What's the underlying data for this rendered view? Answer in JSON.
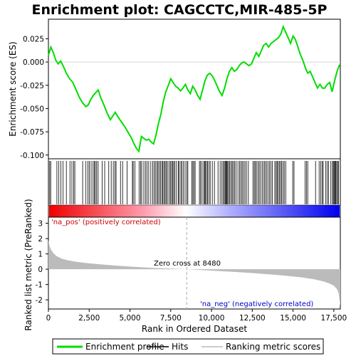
{
  "title": "Enrichment plot: CAGCCTC,MIR-485-5P",
  "colors": {
    "enrichment": "#00dd00",
    "hits": "#000000",
    "ranking": "#bbbbbb",
    "pos_label": "#cc0000",
    "neg_label": "#0000cc",
    "zero_line": "#aaaaaa"
  },
  "chart_data": [
    {
      "type": "line",
      "name": "enrichment-plot",
      "ylabel": "Enrichment score (ES)",
      "yticks": [
        0.025,
        0.0,
        -0.025,
        -0.05,
        -0.075,
        -0.1
      ],
      "ytick_labels": [
        "0.025",
        "0.000",
        "-0.025",
        "-0.050",
        "-0.075",
        "-0.100"
      ],
      "ylim": [
        -0.104,
        0.046
      ],
      "xlim": [
        0,
        17900
      ],
      "series": [
        {
          "name": "Enrichment profile",
          "x": [
            0,
            150,
            300,
            450,
            600,
            750,
            900,
            1100,
            1300,
            1500,
            1700,
            1900,
            2100,
            2300,
            2450,
            2600,
            2750,
            2900,
            3050,
            3200,
            3400,
            3600,
            3800,
            3950,
            4100,
            4300,
            4500,
            4700,
            4900,
            5100,
            5250,
            5400,
            5550,
            5700,
            5850,
            6000,
            6150,
            6300,
            6450,
            6600,
            6750,
            6900,
            7050,
            7200,
            7350,
            7500,
            7650,
            7800,
            7950,
            8100,
            8250,
            8400,
            8550,
            8700,
            8850,
            9000,
            9150,
            9300,
            9450,
            9600,
            9750,
            9900,
            10050,
            10200,
            10350,
            10500,
            10650,
            10800,
            10950,
            11100,
            11250,
            11400,
            11550,
            11700,
            11850,
            12000,
            12150,
            12300,
            12450,
            12600,
            12750,
            12900,
            13050,
            13200,
            13350,
            13500,
            13650,
            13800,
            13950,
            14100,
            14250,
            14400,
            14550,
            14700,
            14850,
            15000,
            15150,
            15300,
            15450,
            15600,
            15750,
            15900,
            16050,
            16200,
            16350,
            16500,
            16650,
            16800,
            16950,
            17100,
            17250,
            17400,
            17550,
            17700,
            17850
          ],
          "y": [
            0.007,
            0.016,
            0.01,
            0.002,
            -0.002,
            0.001,
            -0.004,
            -0.012,
            -0.018,
            -0.022,
            -0.03,
            -0.038,
            -0.044,
            -0.048,
            -0.046,
            -0.04,
            -0.036,
            -0.033,
            -0.03,
            -0.038,
            -0.046,
            -0.055,
            -0.062,
            -0.058,
            -0.054,
            -0.06,
            -0.065,
            -0.07,
            -0.076,
            -0.082,
            -0.088,
            -0.093,
            -0.096,
            -0.08,
            -0.082,
            -0.084,
            -0.083,
            -0.086,
            -0.088,
            -0.078,
            -0.066,
            -0.056,
            -0.042,
            -0.032,
            -0.025,
            -0.018,
            -0.022,
            -0.026,
            -0.028,
            -0.031,
            -0.028,
            -0.024,
            -0.03,
            -0.034,
            -0.026,
            -0.03,
            -0.036,
            -0.04,
            -0.03,
            -0.02,
            -0.014,
            -0.012,
            -0.015,
            -0.02,
            -0.026,
            -0.032,
            -0.036,
            -0.028,
            -0.018,
            -0.01,
            -0.006,
            -0.01,
            -0.008,
            -0.004,
            -0.001,
            0.0,
            -0.002,
            -0.004,
            -0.002,
            0.004,
            0.01,
            0.006,
            0.012,
            0.018,
            0.02,
            0.016,
            0.02,
            0.022,
            0.024,
            0.026,
            0.03,
            0.038,
            0.032,
            0.026,
            0.02,
            0.028,
            0.024,
            0.016,
            0.008,
            0.002,
            -0.006,
            -0.012,
            -0.01,
            -0.016,
            -0.022,
            -0.028,
            -0.024,
            -0.028,
            -0.028,
            -0.024,
            -0.022,
            -0.032,
            -0.02,
            -0.01,
            -0.003
          ]
        }
      ]
    },
    {
      "type": "scatter",
      "name": "hits",
      "xlim": [
        0,
        17900
      ],
      "hits_x": [
        80,
        140,
        520,
        640,
        760,
        890,
        1100,
        1320,
        1440,
        1550,
        1620,
        2100,
        2300,
        2420,
        2510,
        2620,
        2740,
        2820,
        2880,
        2960,
        3050,
        3300,
        3450,
        3700,
        3850,
        3980,
        4080,
        4150,
        4420,
        4550,
        4820,
        5150,
        5200,
        5300,
        5560,
        5650,
        5720,
        5850,
        5950,
        6050,
        6150,
        6280,
        6400,
        6480,
        6560,
        6650,
        6720,
        6800,
        6880,
        6970,
        7020,
        7090,
        7160,
        7230,
        7300,
        7400,
        7480,
        7550,
        7620,
        7680,
        7750,
        7850,
        7960,
        8020,
        8120,
        8180,
        8280,
        8380,
        8480,
        8550,
        8790,
        8860,
        8930,
        9000,
        9260,
        9330,
        9420,
        9520,
        9580,
        9630,
        9700,
        9760,
        9850,
        9920,
        10050,
        10180,
        10400,
        10530,
        10640,
        10720,
        10790,
        10840,
        10890,
        10940,
        10990,
        11050,
        11120,
        11200,
        11270,
        11340,
        11420,
        11500,
        11620,
        11720,
        11800,
        11880,
        11960,
        12050,
        12140,
        12260,
        12540,
        12620,
        12680,
        12760,
        12850,
        12930,
        13020,
        13120,
        13220,
        13280,
        13370,
        13460,
        13560,
        13640,
        13730,
        13880,
        13960,
        14020,
        14080,
        14160,
        14230,
        14300,
        14380,
        14460,
        14550,
        14980,
        15060,
        15740,
        15820,
        15900,
        16380,
        16600,
        16700,
        16790,
        16850,
        17000,
        17100,
        17180,
        17320,
        17420,
        17470,
        17520,
        17570,
        17620,
        17680,
        17730,
        17790
      ]
    },
    {
      "type": "area",
      "name": "ranked-list-metric",
      "xlabel": "Rank in Ordered Dataset",
      "ylabel": "Ranked list metric (PreRanked)",
      "xticks": [
        0,
        2500,
        5000,
        7500,
        10000,
        12500,
        15000,
        17500
      ],
      "xtick_labels": [
        "0",
        "2,500",
        "5,000",
        "7,500",
        "10,000",
        "12,500",
        "15,000",
        "17,500"
      ],
      "yticks": [
        3,
        2,
        1,
        0,
        -1,
        -2
      ],
      "ytick_labels": [
        "3",
        "2",
        "1",
        "0",
        "-1",
        "-2"
      ],
      "ylim": [
        -2.6,
        3.4
      ],
      "xlim": [
        0,
        17900
      ],
      "x": [
        0,
        50,
        150,
        300,
        500,
        800,
        1200,
        1800,
        2500,
        3500,
        4500,
        5500,
        6500,
        7500,
        8480,
        9500,
        10500,
        11500,
        12500,
        13500,
        14500,
        15500,
        16300,
        16800,
        17200,
        17500,
        17700,
        17800,
        17850,
        17900
      ],
      "values": [
        1.9,
        1.6,
        1.3,
        1.05,
        0.85,
        0.7,
        0.58,
        0.47,
        0.38,
        0.29,
        0.21,
        0.14,
        0.08,
        0.04,
        0.0,
        -0.06,
        -0.12,
        -0.18,
        -0.25,
        -0.33,
        -0.42,
        -0.53,
        -0.66,
        -0.78,
        -0.92,
        -1.08,
        -1.3,
        -1.6,
        -2.0,
        -2.4
      ]
    }
  ],
  "annotations": {
    "pos_label": "'na_pos' (positively correlated)",
    "neg_label": "'na_neg' (negatively correlated)",
    "zero_cross": "Zero cross at 8480",
    "zero_cross_rank": 8480
  },
  "legend": {
    "position": "bottom",
    "items": [
      {
        "label": "Enrichment profile",
        "color": "#00dd00",
        "kind": "line"
      },
      {
        "label": "Hits",
        "color": "#000000",
        "kind": "line"
      },
      {
        "label": "Ranking metric scores",
        "color": "#bbbbbb",
        "kind": "line"
      }
    ]
  }
}
